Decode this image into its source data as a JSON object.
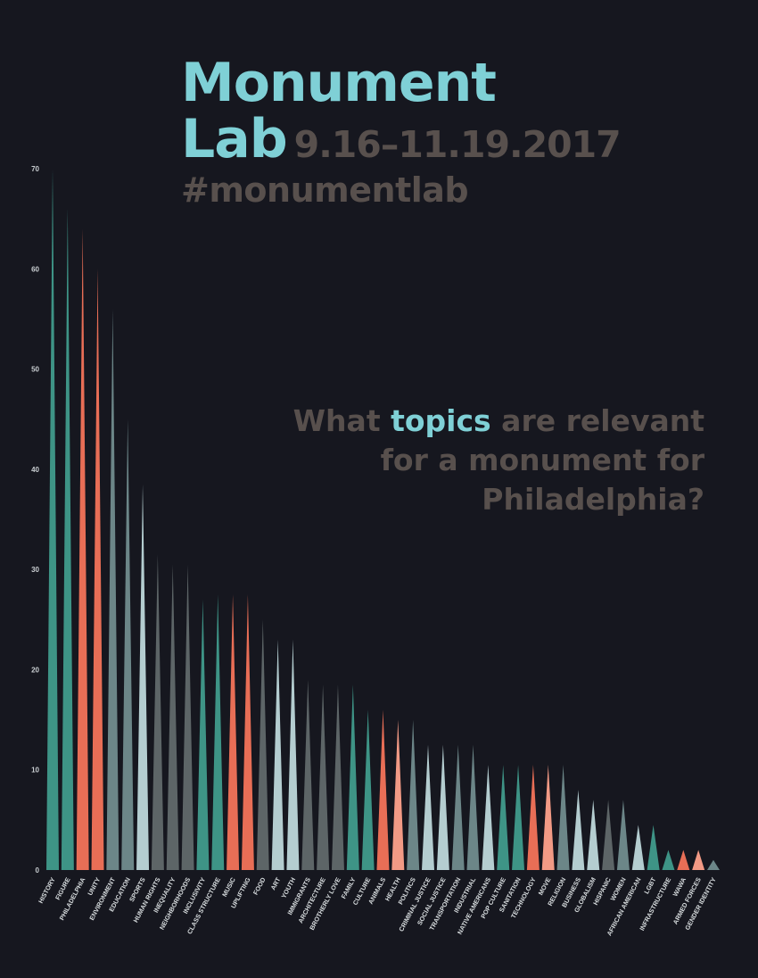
{
  "header": {
    "title_line1": "Monument",
    "title_line2": "Lab",
    "dates": "9.16–11.19.2017",
    "hashtag": "#monumentlab"
  },
  "question": {
    "before": "What ",
    "highlight": "topics",
    "after_line1": " are relevant",
    "line2": "for a monument for",
    "line3": "Philadelphia?"
  },
  "colors": {
    "background": "#16171f",
    "accent": "#7fd0d6",
    "muted_text": "#58504d",
    "teal": "#3e9486",
    "coral": "#e86e56",
    "slate": "#6c8688",
    "light": "#b4cdd0",
    "gray": "#5d6567",
    "salmon": "#f29a85"
  },
  "chart_data": {
    "type": "bar",
    "ylim": [
      0,
      70
    ],
    "yticks": [
      0,
      10,
      20,
      30,
      40,
      50,
      60,
      70
    ],
    "grid": false,
    "categories": [
      "HISTORY",
      "FIGURE",
      "PHILADELPHIA",
      "UNITY",
      "ENVIRONMENT",
      "EDUCATION",
      "SPORTS",
      "HUMAN RIGHTS",
      "INEQUALITY",
      "NEIGHBORHOODS",
      "INCLUSIVITY",
      "CLASS STRUCTURE",
      "MUSIC",
      "UPLIFTING",
      "FOOD",
      "ART",
      "YOUTH",
      "IMMIGRANTS",
      "ARCHITECTURE",
      "BROTHERLY LOVE",
      "FAMILY",
      "CULTURE",
      "ANIMALS",
      "HEALTH",
      "POLITICS",
      "CRIMINAL JUSTICE",
      "SOCIAL JUSTICE",
      "TRANSPORTATION",
      "INDUSTRIAL",
      "NATIVE AMERICANS",
      "POP CULTURE",
      "SANITATION",
      "TECHNOLOGY",
      "MOVE",
      "RELIGION",
      "BUSINESS",
      "GLOBALISM",
      "HISPANIC",
      "WOMEN",
      "AFRICAN AMERICAN",
      "LGBT",
      "INFRASTRUCTURE",
      "WAWA",
      "ARMED FORCES",
      "GENDER IDENTITY"
    ],
    "values": [
      70,
      66,
      64,
      60,
      56,
      45,
      38.5,
      31.5,
      30.5,
      30.5,
      27,
      27.5,
      27.5,
      27.5,
      25,
      23,
      23,
      19,
      18.5,
      18.5,
      18.5,
      16,
      16,
      15,
      15,
      12.5,
      12.5,
      12.5,
      12.5,
      10.5,
      10.5,
      10.5,
      10.5,
      10.5,
      10.5,
      8,
      7,
      7,
      7,
      4.5,
      4.5,
      2,
      2,
      2,
      1
    ],
    "bar_colors": [
      "teal",
      "teal",
      "coral",
      "coral",
      "slate",
      "slate",
      "light",
      "gray",
      "gray",
      "gray",
      "teal",
      "teal",
      "coral",
      "coral",
      "gray",
      "light",
      "light",
      "gray",
      "gray",
      "gray",
      "teal",
      "teal",
      "coral",
      "salmon",
      "slate",
      "light",
      "light",
      "slate",
      "slate",
      "light",
      "teal",
      "teal",
      "coral",
      "salmon",
      "slate",
      "light",
      "light",
      "gray",
      "slate",
      "light",
      "teal",
      "teal",
      "coral",
      "salmon",
      "slate"
    ]
  }
}
